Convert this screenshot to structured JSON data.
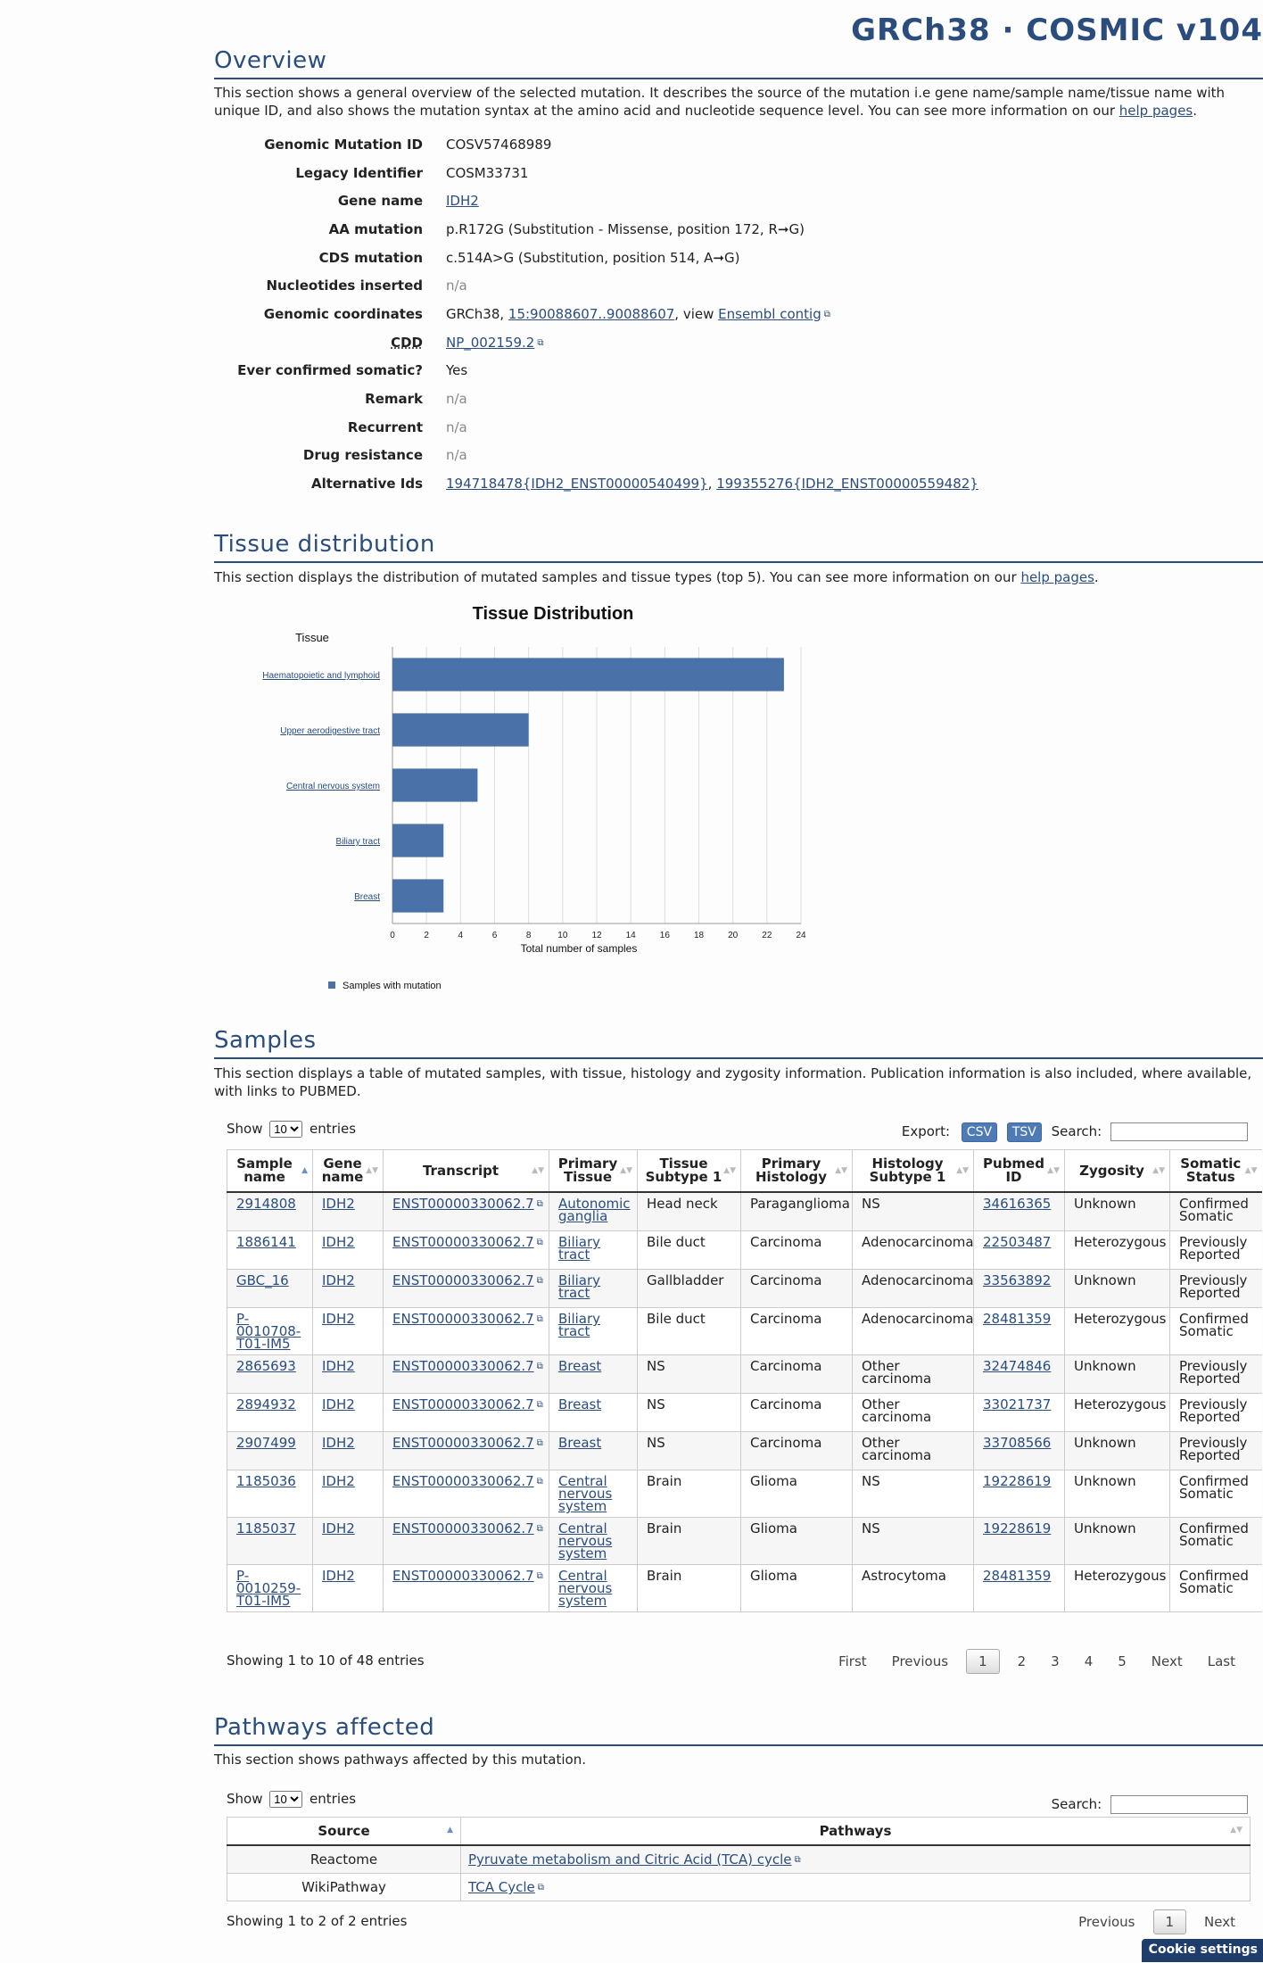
{
  "header": {
    "build_title": "GRCh38 · COSMIC v104"
  },
  "overview": {
    "title": "Overview",
    "description_pre": "This section shows a general overview of the selected mutation. It describes the source of the mutation i.e gene name/sample name/tissue name with unique ID, and also shows the mutation syntax at the amino acid and nucleotide sequence level. You can see more information on our ",
    "help_link": "help pages",
    "description_post": ".",
    "rows": {
      "genomic_mutation_id": {
        "label": "Genomic Mutation ID",
        "value": "COSV57468989"
      },
      "legacy_identifier": {
        "label": "Legacy Identifier",
        "value": "COSM33731"
      },
      "gene_name": {
        "label": "Gene name",
        "value": "IDH2"
      },
      "aa_mutation": {
        "label": "AA mutation",
        "value": "p.R172G (Substitution - Missense, position 172, R➞G)"
      },
      "cds_mutation": {
        "label": "CDS mutation",
        "value": "c.514A>G (Substitution, position 514, A➞G)"
      },
      "nucleotides_inserted": {
        "label": "Nucleotides inserted",
        "value": "n/a"
      },
      "genomic_coordinates": {
        "label": "Genomic coordinates",
        "prefix": "GRCh38, ",
        "link": "15:90088607..90088607",
        "mid": ", view ",
        "link2": "Ensembl contig"
      },
      "cdd": {
        "label": "CDD",
        "value": "NP_002159.2"
      },
      "ever_confirmed_somatic": {
        "label": "Ever confirmed somatic?",
        "value": "Yes"
      },
      "remark": {
        "label": "Remark",
        "value": "n/a"
      },
      "recurrent": {
        "label": "Recurrent",
        "value": "n/a"
      },
      "drug_resistance": {
        "label": "Drug resistance",
        "value": "n/a"
      },
      "alternative_ids": {
        "label": "Alternative Ids",
        "link1": "194718478{IDH2_ENST00000540499}",
        "sep": ", ",
        "link2": "199355276{IDH2_ENST00000559482}"
      }
    }
  },
  "tissue": {
    "title": "Tissue distribution",
    "description_pre": "This section displays the distribution of mutated samples and tissue types (top 5). You can see more information on our ",
    "help_link": "help pages",
    "description_post": "."
  },
  "chart_data": {
    "type": "bar",
    "orientation": "horizontal",
    "title": "Tissue Distribution",
    "ylabel": "Tissue",
    "xlabel": "Total number of samples",
    "categories": [
      "Haematopoietic and lymphoid",
      "Upper aerodigestive tract",
      "Central nervous system",
      "Biliary tract",
      "Breast"
    ],
    "series": [
      {
        "name": "Samples with mutation",
        "values": [
          23,
          8,
          5,
          3,
          3
        ]
      }
    ],
    "xlim": [
      0,
      24
    ],
    "xticks": [
      0,
      2,
      4,
      6,
      8,
      10,
      12,
      14,
      16,
      18,
      20,
      22,
      24
    ],
    "grid": true,
    "legend": "bottom-left",
    "bar_color": "#4a72a8"
  },
  "samples": {
    "title": "Samples",
    "description": "This section displays a table of mutated samples, with tissue, histology and zygosity information. Publication information is also included, where available, with links to PUBMED.",
    "length": {
      "show": "Show",
      "value": "10",
      "entries": "entries"
    },
    "export_label": "Export:",
    "csv": "CSV",
    "tsv": "TSV",
    "search_label": "Search:",
    "columns": [
      "Sample name",
      "Gene name",
      "Transcript",
      "Primary Tissue",
      "Tissue Subtype 1",
      "Primary Histology",
      "Histology Subtype 1",
      "Pubmed ID",
      "Zygosity",
      "Somatic Status"
    ],
    "rows": [
      [
        "2914808",
        "IDH2",
        "ENST00000330062.7",
        "Autonomic ganglia",
        "Head neck",
        "Paraganglioma",
        "NS",
        "34616365",
        "Unknown",
        "Confirmed Somatic"
      ],
      [
        "1886141",
        "IDH2",
        "ENST00000330062.7",
        "Biliary tract",
        "Bile duct",
        "Carcinoma",
        "Adenocarcinoma",
        "22503487",
        "Heterozygous",
        "Previously Reported"
      ],
      [
        "GBC_16",
        "IDH2",
        "ENST00000330062.7",
        "Biliary tract",
        "Gallbladder",
        "Carcinoma",
        "Adenocarcinoma",
        "33563892",
        "Unknown",
        "Previously Reported"
      ],
      [
        "P-0010708-T01-IM5",
        "IDH2",
        "ENST00000330062.7",
        "Biliary tract",
        "Bile duct",
        "Carcinoma",
        "Adenocarcinoma",
        "28481359",
        "Heterozygous",
        "Confirmed Somatic"
      ],
      [
        "2865693",
        "IDH2",
        "ENST00000330062.7",
        "Breast",
        "NS",
        "Carcinoma",
        "Other carcinoma",
        "32474846",
        "Unknown",
        "Previously Reported"
      ],
      [
        "2894932",
        "IDH2",
        "ENST00000330062.7",
        "Breast",
        "NS",
        "Carcinoma",
        "Other carcinoma",
        "33021737",
        "Heterozygous",
        "Previously Reported"
      ],
      [
        "2907499",
        "IDH2",
        "ENST00000330062.7",
        "Breast",
        "NS",
        "Carcinoma",
        "Other carcinoma",
        "33708566",
        "Unknown",
        "Previously Reported"
      ],
      [
        "1185036",
        "IDH2",
        "ENST00000330062.7",
        "Central nervous system",
        "Brain",
        "Glioma",
        "NS",
        "19228619",
        "Unknown",
        "Confirmed Somatic"
      ],
      [
        "1185037",
        "IDH2",
        "ENST00000330062.7",
        "Central nervous system",
        "Brain",
        "Glioma",
        "NS",
        "19228619",
        "Unknown",
        "Confirmed Somatic"
      ],
      [
        "P-0010259-T01-IM5",
        "IDH2",
        "ENST00000330062.7",
        "Central nervous system",
        "Brain",
        "Glioma",
        "Astrocytoma",
        "28481359",
        "Heterozygous",
        "Confirmed Somatic"
      ]
    ],
    "info": "Showing 1 to 10 of 48 entries",
    "pager": {
      "first": "First",
      "previous": "Previous",
      "pages": [
        "1",
        "2",
        "3",
        "4",
        "5"
      ],
      "next": "Next",
      "last": "Last"
    }
  },
  "pathways": {
    "title": "Pathways affected",
    "description": "This section shows pathways affected by this mutation.",
    "length": {
      "show": "Show",
      "value": "10",
      "entries": "entries"
    },
    "search_label": "Search:",
    "columns": [
      "Source",
      "Pathways"
    ],
    "rows": [
      [
        "Reactome",
        "Pyruvate metabolism and Citric Acid (TCA) cycle"
      ],
      [
        "WikiPathway",
        "TCA Cycle"
      ]
    ],
    "info": "Showing 1 to 2 of 2 entries",
    "pager": {
      "previous": "Previous",
      "page": "1",
      "next": "Next"
    }
  },
  "cookie": {
    "label": "Cookie settings"
  }
}
